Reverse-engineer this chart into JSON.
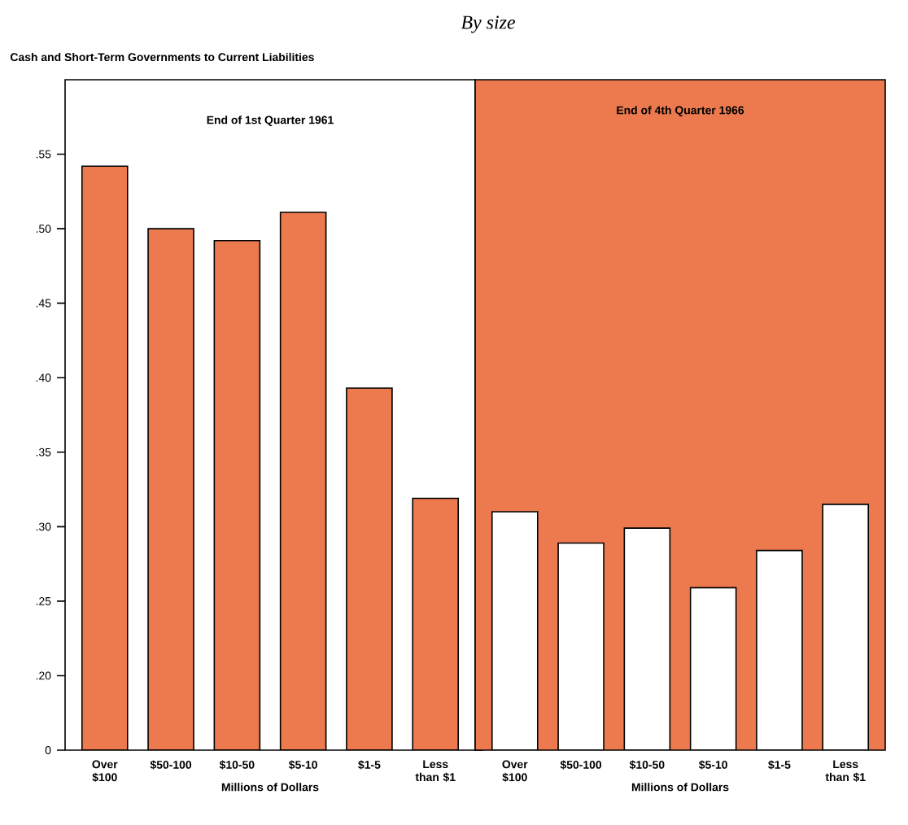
{
  "chart_data": [
    {
      "type": "bar",
      "title": "By size",
      "subtitle": "Cash and Short-Term Governments to Current Liabilities",
      "annotations": [
        "End of 1st Quarter 1961"
      ],
      "categories": [
        "Over $100",
        "$50-100",
        "$10-50",
        "$5-10",
        "$1-5",
        "Less than $1"
      ],
      "values": [
        0.542,
        0.5,
        0.492,
        0.511,
        0.393,
        0.319
      ],
      "colors": [
        "#ec7a4e",
        "#ec7a4e",
        "#ec7a4e",
        "#ec7a4e",
        "#ec7a4e",
        "#ec7a4e"
      ],
      "xlabel": "Millions of Dollars",
      "ylim": [
        0.15,
        0.6
      ],
      "yticks": [
        {
          "value": 0.15,
          "label": "0"
        },
        {
          "value": 0.2,
          "label": ".20"
        },
        {
          "value": 0.25,
          "label": ".25"
        },
        {
          "value": 0.3,
          "label": ".30"
        },
        {
          "value": 0.35,
          "label": ".35"
        },
        {
          "value": 0.4,
          "label": ".40"
        },
        {
          "value": 0.45,
          "label": ".45"
        },
        {
          "value": 0.5,
          "label": ".50"
        },
        {
          "value": 0.55,
          "label": ".55"
        }
      ]
    },
    {
      "type": "bar",
      "title": "End of 4th Quarter 1966",
      "categories": [
        "Over $100",
        "$50-100",
        "$10-50",
        "$5-10",
        "$1-5",
        "Less than $1"
      ],
      "values": [
        0.31,
        0.289,
        0.299,
        0.259,
        0.284,
        0.315
      ],
      "colors": [
        "#ffffff",
        "#ffffff",
        "#ffffff",
        "#ffffff",
        "#ffffff",
        "#ffffff"
      ],
      "xlabel": "Millions of Dollars",
      "ylim": [
        0.15,
        0.6
      ],
      "tick_labels": "x",
      "bands": [
        {
          "axis": "y",
          "from": 0.15,
          "to": 0.6,
          "color": "#ec7a4e"
        }
      ]
    }
  ]
}
